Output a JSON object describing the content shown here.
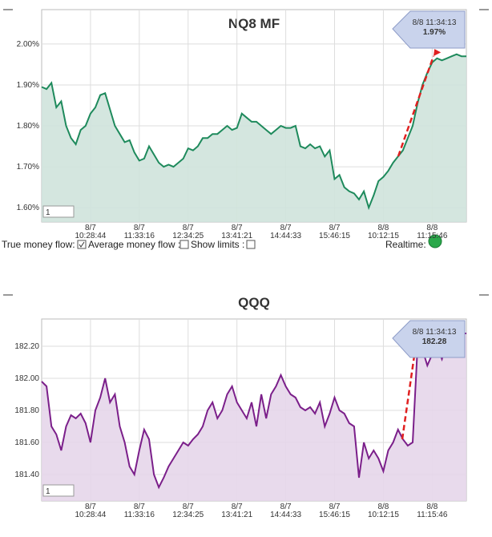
{
  "chart_data": [
    {
      "type": "line",
      "title": "NQ8 MF",
      "color": "#1e8a5c",
      "fill": "#cfe3dc",
      "grid": true,
      "xlim": [
        0,
        87
      ],
      "ylim": [
        1.565,
        2.084
      ],
      "yticks": [
        {
          "value": 1.6,
          "label": "1.60%"
        },
        {
          "value": 1.7,
          "label": "1.70%"
        },
        {
          "value": 1.8,
          "label": "1.80%"
        },
        {
          "value": 1.9,
          "label": "1.90%"
        },
        {
          "value": 2.0,
          "label": "2.00%"
        }
      ],
      "xticks": [
        {
          "value": 10,
          "label": "8/7 10:28:44"
        },
        {
          "value": 20,
          "label": "8/7 11:33:16"
        },
        {
          "value": 30,
          "label": "8/7 12:34:25"
        },
        {
          "value": 40,
          "label": "8/7 13:41:21"
        },
        {
          "value": 50,
          "label": "8/7 14:44:33"
        },
        {
          "value": 60,
          "label": "8/7 15:46:15"
        },
        {
          "value": 70,
          "label": "8/8 10:12:15"
        },
        {
          "value": 80,
          "label": "8/8 11:15:46"
        }
      ],
      "values": [
        1.895,
        1.89,
        1.905,
        1.845,
        1.86,
        1.8,
        1.77,
        1.755,
        1.79,
        1.8,
        1.83,
        1.845,
        1.875,
        1.88,
        1.84,
        1.8,
        1.78,
        1.76,
        1.765,
        1.735,
        1.715,
        1.72,
        1.75,
        1.73,
        1.71,
        1.7,
        1.705,
        1.7,
        1.71,
        1.72,
        1.745,
        1.74,
        1.75,
        1.77,
        1.77,
        1.78,
        1.78,
        1.79,
        1.8,
        1.79,
        1.795,
        1.83,
        1.82,
        1.81,
        1.81,
        1.8,
        1.79,
        1.78,
        1.79,
        1.8,
        1.795,
        1.795,
        1.8,
        1.75,
        1.745,
        1.755,
        1.745,
        1.75,
        1.725,
        1.74,
        1.67,
        1.68,
        1.65,
        1.64,
        1.635,
        1.62,
        1.64,
        1.6,
        1.63,
        1.665,
        1.675,
        1.69,
        1.71,
        1.725,
        1.74,
        1.77,
        1.8,
        1.855,
        1.9,
        1.93,
        1.955,
        1.965,
        1.96,
        1.965,
        1.97,
        1.975,
        1.97,
        1.97
      ],
      "tooltip": {
        "time": "8/8 11:34:13",
        "value": "1.97%"
      },
      "input": "1"
    },
    {
      "type": "line",
      "title": "QQQ",
      "color": "#7b1f8a",
      "fill": "#e6d6ea",
      "grid": true,
      "xlim": [
        0,
        87
      ],
      "ylim": [
        181.235,
        182.37
      ],
      "yticks": [
        {
          "value": 181.4,
          "label": "181.40"
        },
        {
          "value": 181.6,
          "label": "181.60"
        },
        {
          "value": 181.8,
          "label": "181.80"
        },
        {
          "value": 182.0,
          "label": "182.00"
        },
        {
          "value": 182.2,
          "label": "182.20"
        }
      ],
      "xticks": [
        {
          "value": 10,
          "label": "8/7 10:28:44"
        },
        {
          "value": 20,
          "label": "8/7 11:33:16"
        },
        {
          "value": 30,
          "label": "8/7 12:34:25"
        },
        {
          "value": 40,
          "label": "8/7 13:41:21"
        },
        {
          "value": 50,
          "label": "8/7 14:44:33"
        },
        {
          "value": 60,
          "label": "8/7 15:46:15"
        },
        {
          "value": 70,
          "label": "8/8 10:12:15"
        },
        {
          "value": 80,
          "label": "8/8 11:15:46"
        }
      ],
      "values": [
        181.98,
        181.95,
        181.7,
        181.65,
        181.55,
        181.7,
        181.77,
        181.75,
        181.78,
        181.72,
        181.6,
        181.8,
        181.88,
        182.0,
        181.85,
        181.9,
        181.7,
        181.6,
        181.45,
        181.4,
        181.55,
        181.68,
        181.62,
        181.4,
        181.32,
        181.38,
        181.45,
        181.5,
        181.55,
        181.6,
        181.58,
        181.62,
        181.65,
        181.7,
        181.8,
        181.85,
        181.75,
        181.8,
        181.9,
        181.95,
        181.85,
        181.8,
        181.75,
        181.85,
        181.7,
        181.9,
        181.75,
        181.9,
        181.95,
        182.02,
        181.95,
        181.9,
        181.88,
        181.82,
        181.8,
        181.82,
        181.78,
        181.85,
        181.7,
        181.78,
        181.88,
        181.8,
        181.78,
        181.72,
        181.7,
        181.38,
        181.6,
        181.5,
        181.55,
        181.5,
        181.42,
        181.55,
        181.6,
        181.68,
        181.62,
        181.58,
        181.6,
        182.2,
        182.18,
        182.08,
        182.15,
        182.2,
        182.12,
        182.22,
        182.25,
        182.27,
        182.28,
        182.28
      ],
      "tooltip": {
        "time": "8/8 11:34:13",
        "value": "182.28"
      },
      "input": "1"
    }
  ],
  "controls": {
    "true_money_flow": "True money flow:",
    "average_money_flow": "Average money flow :",
    "show_limits": "Show limits :",
    "realtime": "Realtime:"
  }
}
